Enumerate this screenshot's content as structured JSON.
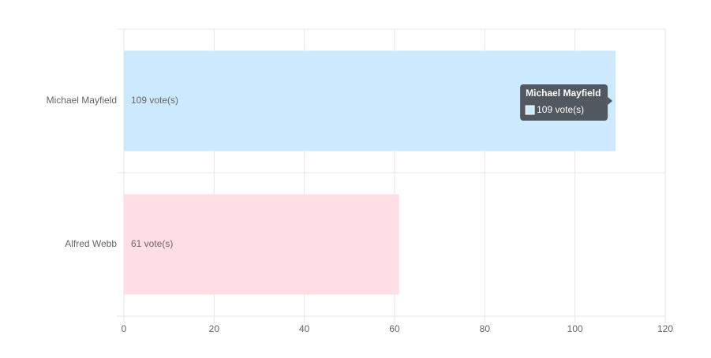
{
  "chart_data": {
    "type": "bar",
    "orientation": "horizontal",
    "categories": [
      "Michael Mayfield",
      "Alfred Webb"
    ],
    "values": [
      109,
      61
    ],
    "value_labels": [
      "109 vote(s)",
      "61 vote(s)"
    ],
    "colors": [
      "#cce9fd",
      "#ffdfe5"
    ],
    "xlim": [
      0,
      120
    ],
    "xticks": [
      0,
      20,
      40,
      60,
      80,
      100,
      120
    ],
    "grid": true
  }
}
